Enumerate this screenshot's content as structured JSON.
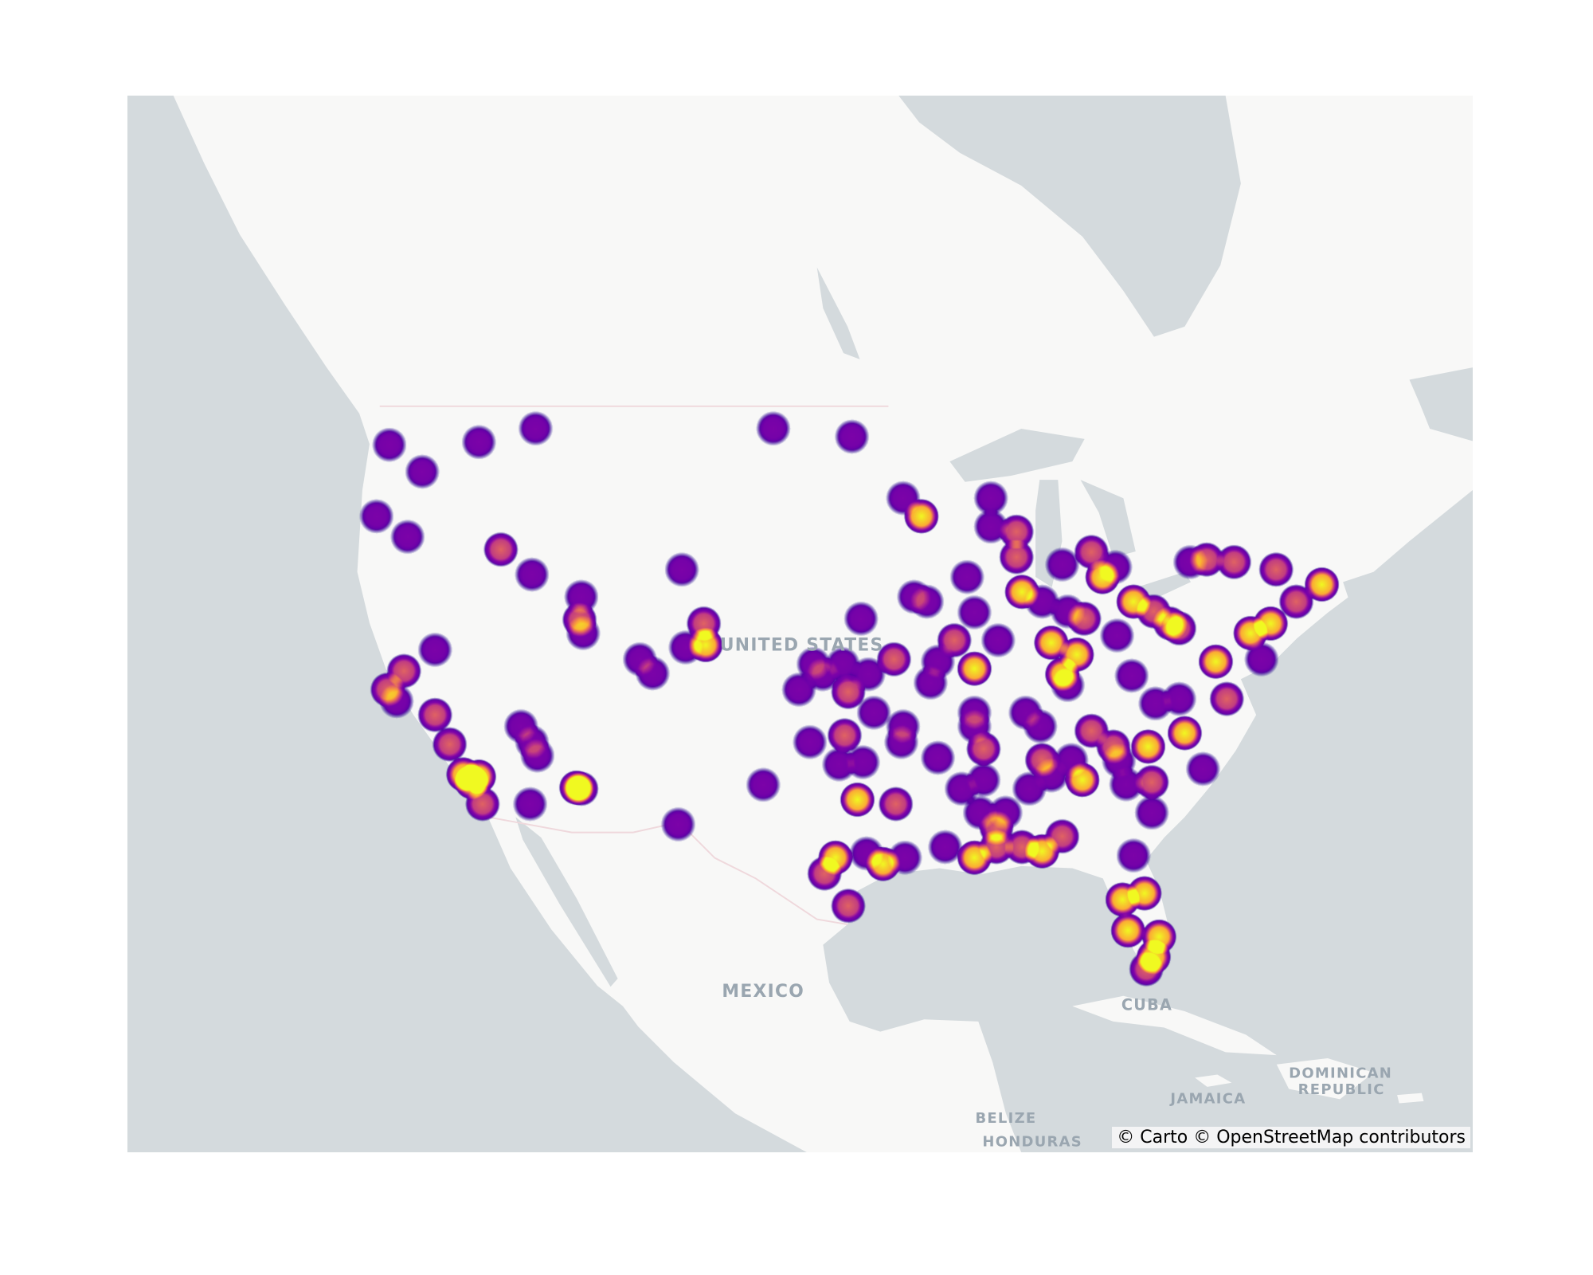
{
  "map": {
    "style": "carto-positron",
    "colors": {
      "land": "#f8f8f7",
      "water": "#d4dadd",
      "border": "#efd8dc",
      "label": "#9aa6b0"
    },
    "colorscale": [
      "#0d0887",
      "#7e03a8",
      "#b12a90",
      "#e16462",
      "#fca636",
      "#f0f921"
    ],
    "labels": {
      "united_states": "UNITED STATES",
      "mexico": "MEXICO",
      "cuba": "CUBA",
      "jamaica": "JAMAICA",
      "dominican_republic_1": "DOMINICAN",
      "dominican_republic_2": "REPUBLIC",
      "belize": "BELIZE",
      "honduras": "HONDURAS"
    },
    "attribution": "© Carto © OpenStreetMap contributors"
  },
  "chart_data": {
    "type": "heatmap",
    "projection": "mercator",
    "points": [
      [
        47.6,
        -122.3,
        1
      ],
      [
        46.6,
        -120.5,
        1
      ],
      [
        47.7,
        -117.4,
        1
      ],
      [
        48.2,
        -114.3,
        1
      ],
      [
        44.9,
        -123.0,
        1
      ],
      [
        44.1,
        -121.3,
        1
      ],
      [
        43.6,
        -116.2,
        2
      ],
      [
        42.6,
        -114.5,
        1
      ],
      [
        41.7,
        -111.8,
        1
      ],
      [
        40.76,
        -111.9,
        2
      ],
      [
        40.2,
        -111.7,
        1
      ],
      [
        42.8,
        -106.3,
        1
      ],
      [
        40.6,
        -105.1,
        2
      ],
      [
        39.7,
        -105.0,
        3
      ],
      [
        39.6,
        -106.1,
        1
      ],
      [
        39.1,
        -108.6,
        1
      ],
      [
        38.5,
        -107.9,
        1
      ],
      [
        39.5,
        -119.8,
        1
      ],
      [
        38.6,
        -121.5,
        2
      ],
      [
        37.8,
        -122.4,
        2
      ],
      [
        37.3,
        -121.9,
        1
      ],
      [
        36.7,
        -119.8,
        2
      ],
      [
        35.4,
        -119.0,
        2
      ],
      [
        34.05,
        -118.25,
        4
      ],
      [
        33.95,
        -117.4,
        3
      ],
      [
        33.7,
        -117.8,
        3
      ],
      [
        32.7,
        -117.2,
        2
      ],
      [
        36.2,
        -115.1,
        1
      ],
      [
        35.5,
        -114.5,
        1
      ],
      [
        34.9,
        -114.2,
        1
      ],
      [
        32.7,
        -114.6,
        1
      ],
      [
        33.45,
        -112.07,
        3
      ],
      [
        33.4,
        -111.8,
        2
      ],
      [
        31.76,
        -106.5,
        1
      ],
      [
        33.58,
        -101.85,
        1
      ],
      [
        48.2,
        -101.3,
        1
      ],
      [
        47.9,
        -97.0,
        1
      ],
      [
        45.6,
        -94.2,
        1
      ],
      [
        44.9,
        -93.2,
        3
      ],
      [
        45.6,
        -89.4,
        1
      ],
      [
        44.5,
        -89.4,
        1
      ],
      [
        44.3,
        -88.0,
        2
      ],
      [
        43.3,
        -88.0,
        2
      ],
      [
        41.9,
        -87.7,
        4
      ],
      [
        41.5,
        -86.6,
        1
      ],
      [
        43.0,
        -85.5,
        1
      ],
      [
        43.5,
        -83.9,
        2
      ],
      [
        42.5,
        -83.3,
        4
      ],
      [
        42.9,
        -82.6,
        1
      ],
      [
        41.5,
        -81.6,
        4
      ],
      [
        41.1,
        -80.5,
        2
      ],
      [
        40.6,
        -79.6,
        2
      ],
      [
        40.4,
        -79.1,
        2
      ],
      [
        43.1,
        -78.5,
        1
      ],
      [
        43.2,
        -77.6,
        2
      ],
      [
        43.1,
        -76.1,
        2
      ],
      [
        42.8,
        -73.8,
        2
      ],
      [
        42.2,
        -71.3,
        4
      ],
      [
        41.5,
        -72.7,
        2
      ],
      [
        40.6,
        -74.1,
        4
      ],
      [
        40.2,
        -75.2,
        4
      ],
      [
        39.0,
        -77.1,
        4
      ],
      [
        39.1,
        -74.6,
        1
      ],
      [
        37.4,
        -76.5,
        2
      ],
      [
        34.3,
        -77.8,
        1
      ],
      [
        40.1,
        -82.5,
        1
      ],
      [
        39.8,
        -86.1,
        4
      ],
      [
        39.3,
        -84.7,
        3
      ],
      [
        38.46,
        -85.5,
        3
      ],
      [
        38.0,
        -85.2,
        1
      ],
      [
        40.8,
        -84.3,
        2
      ],
      [
        41.1,
        -85.2,
        1
      ],
      [
        38.4,
        -81.7,
        1
      ],
      [
        37.2,
        -80.4,
        1
      ],
      [
        37.4,
        -79.1,
        1
      ],
      [
        36.0,
        -83.9,
        2
      ],
      [
        35.3,
        -82.7,
        2
      ],
      [
        34.66,
        -82.4,
        1
      ],
      [
        35.3,
        -80.8,
        3
      ],
      [
        35.9,
        -78.8,
        3
      ],
      [
        39.9,
        -89.0,
        1
      ],
      [
        38.7,
        -90.3,
        3
      ],
      [
        39.9,
        -91.4,
        2
      ],
      [
        41.06,
        -90.3,
        1
      ],
      [
        42.5,
        -90.7,
        1
      ],
      [
        41.7,
        -93.6,
        1
      ],
      [
        41.5,
        -92.9,
        1
      ],
      [
        40.8,
        -96.5,
        1
      ],
      [
        39.1,
        -94.7,
        2
      ],
      [
        39.0,
        -92.3,
        1
      ],
      [
        38.1,
        -92.7,
        1
      ],
      [
        38.9,
        -99.1,
        1
      ],
      [
        38.46,
        -98.6,
        1
      ],
      [
        38.9,
        -97.5,
        1
      ],
      [
        38.46,
        -96.1,
        1
      ],
      [
        37.8,
        -99.9,
        1
      ],
      [
        37.7,
        -97.2,
        2
      ],
      [
        36.8,
        -95.8,
        1
      ],
      [
        36.2,
        -94.2,
        1
      ],
      [
        35.5,
        -94.3,
        1
      ],
      [
        35.8,
        -97.4,
        2
      ],
      [
        35.5,
        -99.3,
        1
      ],
      [
        34.5,
        -97.7,
        1
      ],
      [
        34.6,
        -96.4,
        1
      ],
      [
        32.9,
        -96.7,
        4
      ],
      [
        32.7,
        -94.6,
        2
      ],
      [
        36.8,
        -90.3,
        1
      ],
      [
        36.2,
        -90.3,
        1
      ],
      [
        35.2,
        -89.8,
        2
      ],
      [
        34.8,
        -92.3,
        1
      ],
      [
        33.4,
        -91.0,
        1
      ],
      [
        33.8,
        -89.8,
        1
      ],
      [
        36.8,
        -87.5,
        1
      ],
      [
        36.2,
        -86.7,
        1
      ],
      [
        34.7,
        -86.6,
        2
      ],
      [
        33.4,
        -87.3,
        1
      ],
      [
        34.0,
        -86.1,
        1
      ],
      [
        33.8,
        -84.4,
        3
      ],
      [
        34.7,
        -85.0,
        1
      ],
      [
        33.6,
        -82.0,
        1
      ],
      [
        33.7,
        -80.6,
        2
      ],
      [
        32.3,
        -80.6,
        1
      ],
      [
        32.3,
        -90.0,
        1
      ],
      [
        32.3,
        -88.6,
        1
      ],
      [
        31.6,
        -89.1,
        2
      ],
      [
        30.7,
        -91.9,
        1
      ],
      [
        30.2,
        -90.3,
        4
      ],
      [
        30.7,
        -89.1,
        2
      ],
      [
        30.7,
        -87.7,
        2
      ],
      [
        30.5,
        -86.6,
        3
      ],
      [
        31.2,
        -85.5,
        2
      ],
      [
        30.2,
        -97.9,
        3
      ],
      [
        29.45,
        -98.5,
        2
      ],
      [
        30.4,
        -96.2,
        1
      ],
      [
        29.9,
        -95.3,
        4
      ],
      [
        30.2,
        -94.1,
        1
      ],
      [
        27.9,
        -97.2,
        2
      ],
      [
        30.3,
        -81.6,
        1
      ],
      [
        28.2,
        -82.2,
        4
      ],
      [
        28.5,
        -81.0,
        4
      ],
      [
        26.7,
        -81.9,
        3
      ],
      [
        26.4,
        -80.2,
        4
      ],
      [
        25.4,
        -80.5,
        3
      ],
      [
        24.8,
        -80.9,
        2
      ]
    ]
  }
}
